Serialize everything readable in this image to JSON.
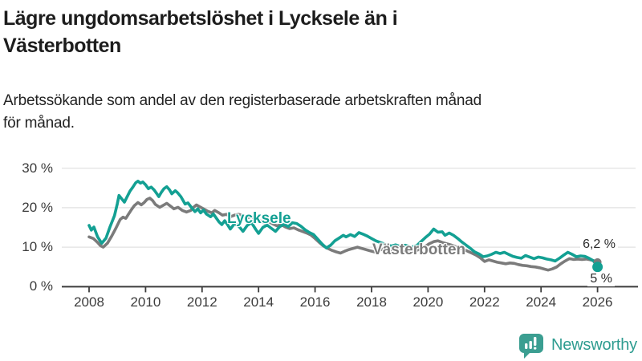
{
  "title_lines": [
    "Lägre ungdomsarbetslöshet i Lycksele än i",
    "Västerbotten"
  ],
  "subtitle_lines": [
    "Arbetssökande som andel av den registerbaserade arbetskraften månad",
    "för månad."
  ],
  "branding": {
    "name": "Newsworthy",
    "icon": "newsworthy-chart-bubble-icon",
    "color": "#2e9c90"
  },
  "colors": {
    "lycksele": "#13a093",
    "vasterbotten": "#7b7b7b",
    "axis": "#3c3c3c",
    "gridline": "#e2e2e2",
    "title_text": "#1d1d1d"
  },
  "chart_data": {
    "type": "line",
    "title": "Lägre ungdomsarbetslöshet i Lycksele än i Västerbotten",
    "subtitle": "Arbetssökande som andel av den registerbaserade arbetskraften månad för månad.",
    "xlabel": "",
    "ylabel": "",
    "grid": true,
    "legend_position": "inline-labels",
    "x_axis": {
      "tick_labels": [
        "2008",
        "2010",
        "2012",
        "2014",
        "2016",
        "2018",
        "2020",
        "2022",
        "2024",
        "2026"
      ],
      "ticks": [
        2008,
        2010,
        2012,
        2014,
        2016,
        2018,
        2020,
        2022,
        2024,
        2026
      ]
    },
    "y_axis": {
      "tick_labels": [
        "0 %",
        "10 %",
        "20 %",
        "30 %"
      ],
      "ticks": [
        0,
        10,
        20,
        30
      ],
      "range": [
        0,
        32
      ],
      "unit": "%"
    },
    "series": [
      {
        "name": "Västerbotten",
        "color": "#7b7b7b",
        "end_label": "6,2 %",
        "end_value": 6.2,
        "points": [
          [
            2008.0,
            12.6
          ],
          [
            2008.15,
            12.2
          ],
          [
            2008.3,
            11.2
          ],
          [
            2008.4,
            10.4
          ],
          [
            2008.5,
            10.0
          ],
          [
            2008.65,
            11.0
          ],
          [
            2008.8,
            12.8
          ],
          [
            2008.95,
            14.8
          ],
          [
            2009.1,
            17.0
          ],
          [
            2009.2,
            17.6
          ],
          [
            2009.3,
            17.3
          ],
          [
            2009.4,
            18.4
          ],
          [
            2009.5,
            19.5
          ],
          [
            2009.6,
            20.5
          ],
          [
            2009.73,
            21.3
          ],
          [
            2009.85,
            20.7
          ],
          [
            2009.95,
            21.3
          ],
          [
            2010.05,
            22.1
          ],
          [
            2010.15,
            22.4
          ],
          [
            2010.25,
            21.8
          ],
          [
            2010.35,
            20.8
          ],
          [
            2010.5,
            20.1
          ],
          [
            2010.65,
            20.7
          ],
          [
            2010.75,
            21.1
          ],
          [
            2010.9,
            20.3
          ],
          [
            2011.0,
            19.7
          ],
          [
            2011.15,
            20.1
          ],
          [
            2011.3,
            19.3
          ],
          [
            2011.45,
            18.9
          ],
          [
            2011.6,
            19.3
          ],
          [
            2011.7,
            20.1
          ],
          [
            2011.8,
            20.7
          ],
          [
            2011.9,
            20.3
          ],
          [
            2012.05,
            19.7
          ],
          [
            2012.2,
            19.1
          ],
          [
            2012.35,
            18.7
          ],
          [
            2012.45,
            19.3
          ],
          [
            2012.6,
            18.7
          ],
          [
            2012.72,
            18.1
          ],
          [
            2012.87,
            18.3
          ],
          [
            2013.0,
            17.7
          ],
          [
            2013.15,
            18.1
          ],
          [
            2013.3,
            18.3
          ],
          [
            2013.45,
            18.0
          ],
          [
            2013.6,
            17.4
          ],
          [
            2013.75,
            17.8
          ],
          [
            2013.9,
            17.2
          ],
          [
            2014.05,
            16.7
          ],
          [
            2014.2,
            16.2
          ],
          [
            2014.35,
            16.5
          ],
          [
            2014.5,
            15.9
          ],
          [
            2014.65,
            15.4
          ],
          [
            2014.8,
            15.7
          ],
          [
            2014.95,
            15.1
          ],
          [
            2015.1,
            14.7
          ],
          [
            2015.25,
            14.9
          ],
          [
            2015.4,
            14.4
          ],
          [
            2015.55,
            14.0
          ],
          [
            2015.7,
            13.6
          ],
          [
            2015.85,
            13.1
          ],
          [
            2016.0,
            12.2
          ],
          [
            2016.15,
            11.2
          ],
          [
            2016.3,
            10.3
          ],
          [
            2016.45,
            9.7
          ],
          [
            2016.6,
            9.2
          ],
          [
            2016.75,
            8.8
          ],
          [
            2016.9,
            8.5
          ],
          [
            2017.05,
            9.0
          ],
          [
            2017.2,
            9.4
          ],
          [
            2017.35,
            9.7
          ],
          [
            2017.5,
            10.0
          ],
          [
            2017.65,
            9.7
          ],
          [
            2017.8,
            9.4
          ],
          [
            2017.95,
            9.1
          ],
          [
            2018.1,
            8.8
          ],
          [
            2018.25,
            9.2
          ],
          [
            2018.4,
            9.5
          ],
          [
            2018.55,
            9.3
          ],
          [
            2018.7,
            9.0
          ],
          [
            2018.85,
            8.8
          ],
          [
            2019.0,
            9.1
          ],
          [
            2019.15,
            8.9
          ],
          [
            2019.3,
            8.7
          ],
          [
            2019.45,
            8.9
          ],
          [
            2019.6,
            9.2
          ],
          [
            2019.75,
            9.6
          ],
          [
            2019.9,
            10.2
          ],
          [
            2020.05,
            10.9
          ],
          [
            2020.2,
            11.4
          ],
          [
            2020.35,
            11.6
          ],
          [
            2020.5,
            11.2
          ],
          [
            2020.65,
            10.9
          ],
          [
            2020.8,
            10.6
          ],
          [
            2020.95,
            10.2
          ],
          [
            2021.1,
            9.9
          ],
          [
            2021.25,
            9.5
          ],
          [
            2021.4,
            9.0
          ],
          [
            2021.55,
            8.5
          ],
          [
            2021.7,
            8.0
          ],
          [
            2021.85,
            7.3
          ],
          [
            2022.0,
            6.4
          ],
          [
            2022.15,
            6.8
          ],
          [
            2022.3,
            6.5
          ],
          [
            2022.45,
            6.2
          ],
          [
            2022.6,
            6.0
          ],
          [
            2022.75,
            5.8
          ],
          [
            2022.9,
            6.0
          ],
          [
            2023.05,
            5.9
          ],
          [
            2023.2,
            5.6
          ],
          [
            2023.35,
            5.4
          ],
          [
            2023.5,
            5.3
          ],
          [
            2023.65,
            5.1
          ],
          [
            2023.8,
            5.0
          ],
          [
            2023.95,
            4.8
          ],
          [
            2024.1,
            4.5
          ],
          [
            2024.25,
            4.2
          ],
          [
            2024.4,
            4.5
          ],
          [
            2024.55,
            5.0
          ],
          [
            2024.7,
            5.8
          ],
          [
            2024.85,
            6.5
          ],
          [
            2025.0,
            7.1
          ],
          [
            2025.15,
            6.9
          ],
          [
            2025.3,
            7.0
          ],
          [
            2025.45,
            6.9
          ],
          [
            2025.6,
            7.0
          ],
          [
            2025.75,
            6.8
          ],
          [
            2025.9,
            6.5
          ],
          [
            2026.0,
            6.2
          ]
        ]
      },
      {
        "name": "Lycksele",
        "color": "#13a093",
        "end_label": "5 %",
        "end_value": 5.0,
        "points": [
          [
            2008.0,
            15.5
          ],
          [
            2008.08,
            14.3
          ],
          [
            2008.17,
            15.1
          ],
          [
            2008.3,
            12.6
          ],
          [
            2008.45,
            11.0
          ],
          [
            2008.6,
            12.3
          ],
          [
            2008.74,
            15.1
          ],
          [
            2008.9,
            18.0
          ],
          [
            2009.0,
            21.0
          ],
          [
            2009.06,
            23.1
          ],
          [
            2009.17,
            22.1
          ],
          [
            2009.25,
            21.4
          ],
          [
            2009.35,
            22.8
          ],
          [
            2009.45,
            24.2
          ],
          [
            2009.55,
            25.2
          ],
          [
            2009.65,
            26.3
          ],
          [
            2009.73,
            26.7
          ],
          [
            2009.82,
            26.2
          ],
          [
            2009.9,
            26.5
          ],
          [
            2010.0,
            25.8
          ],
          [
            2010.1,
            24.8
          ],
          [
            2010.2,
            25.2
          ],
          [
            2010.3,
            24.5
          ],
          [
            2010.4,
            23.5
          ],
          [
            2010.47,
            22.8
          ],
          [
            2010.55,
            23.8
          ],
          [
            2010.65,
            24.8
          ],
          [
            2010.75,
            25.3
          ],
          [
            2010.85,
            24.5
          ],
          [
            2010.93,
            23.5
          ],
          [
            2011.05,
            24.3
          ],
          [
            2011.13,
            23.8
          ],
          [
            2011.25,
            22.8
          ],
          [
            2011.4,
            20.9
          ],
          [
            2011.5,
            21.2
          ],
          [
            2011.63,
            20.0
          ],
          [
            2011.75,
            19.0
          ],
          [
            2011.85,
            19.7
          ],
          [
            2011.95,
            18.7
          ],
          [
            2012.05,
            19.4
          ],
          [
            2012.15,
            18.4
          ],
          [
            2012.3,
            17.7
          ],
          [
            2012.4,
            18.4
          ],
          [
            2012.5,
            17.4
          ],
          [
            2012.6,
            16.4
          ],
          [
            2012.7,
            15.7
          ],
          [
            2012.8,
            16.7
          ],
          [
            2012.9,
            15.7
          ],
          [
            2013.0,
            14.6
          ],
          [
            2013.15,
            16.0
          ],
          [
            2013.3,
            15.3
          ],
          [
            2013.45,
            14.0
          ],
          [
            2013.6,
            15.5
          ],
          [
            2013.75,
            16.2
          ],
          [
            2013.9,
            14.5
          ],
          [
            2014.0,
            13.5
          ],
          [
            2014.15,
            15.0
          ],
          [
            2014.3,
            15.6
          ],
          [
            2014.45,
            14.8
          ],
          [
            2014.6,
            14.0
          ],
          [
            2014.75,
            15.2
          ],
          [
            2014.9,
            15.8
          ],
          [
            2015.05,
            15.2
          ],
          [
            2015.2,
            16.2
          ],
          [
            2015.35,
            16.0
          ],
          [
            2015.5,
            15.3
          ],
          [
            2015.65,
            14.4
          ],
          [
            2015.8,
            13.7
          ],
          [
            2015.95,
            13.2
          ],
          [
            2016.1,
            12.0
          ],
          [
            2016.25,
            10.8
          ],
          [
            2016.4,
            9.8
          ],
          [
            2016.55,
            10.5
          ],
          [
            2016.7,
            11.6
          ],
          [
            2016.85,
            12.3
          ],
          [
            2017.0,
            13.0
          ],
          [
            2017.1,
            12.6
          ],
          [
            2017.25,
            13.2
          ],
          [
            2017.4,
            12.7
          ],
          [
            2017.55,
            13.7
          ],
          [
            2017.7,
            13.3
          ],
          [
            2017.85,
            12.8
          ],
          [
            2018.0,
            12.2
          ],
          [
            2018.15,
            11.6
          ],
          [
            2018.3,
            11.2
          ],
          [
            2018.5,
            10.7
          ],
          [
            2018.7,
            10.3
          ],
          [
            2018.85,
            10.6
          ],
          [
            2019.0,
            10.2
          ],
          [
            2019.2,
            10.5
          ],
          [
            2019.4,
            10.0
          ],
          [
            2019.6,
            10.4
          ],
          [
            2019.75,
            11.4
          ],
          [
            2019.9,
            12.4
          ],
          [
            2020.05,
            13.3
          ],
          [
            2020.2,
            14.6
          ],
          [
            2020.35,
            13.8
          ],
          [
            2020.5,
            13.9
          ],
          [
            2020.6,
            13.0
          ],
          [
            2020.75,
            13.6
          ],
          [
            2020.9,
            13.0
          ],
          [
            2021.05,
            12.2
          ],
          [
            2021.2,
            11.3
          ],
          [
            2021.35,
            10.5
          ],
          [
            2021.5,
            9.7
          ],
          [
            2021.65,
            8.8
          ],
          [
            2021.8,
            8.3
          ],
          [
            2021.95,
            7.6
          ],
          [
            2022.1,
            7.8
          ],
          [
            2022.25,
            8.2
          ],
          [
            2022.4,
            8.7
          ],
          [
            2022.55,
            8.4
          ],
          [
            2022.7,
            8.7
          ],
          [
            2022.85,
            8.2
          ],
          [
            2023.0,
            7.7
          ],
          [
            2023.15,
            7.4
          ],
          [
            2023.3,
            7.2
          ],
          [
            2023.45,
            7.9
          ],
          [
            2023.6,
            7.5
          ],
          [
            2023.75,
            7.1
          ],
          [
            2023.9,
            7.5
          ],
          [
            2024.05,
            7.3
          ],
          [
            2024.2,
            7.0
          ],
          [
            2024.35,
            6.8
          ],
          [
            2024.5,
            6.5
          ],
          [
            2024.65,
            7.2
          ],
          [
            2024.8,
            8.0
          ],
          [
            2024.95,
            8.7
          ],
          [
            2025.1,
            8.2
          ],
          [
            2025.25,
            7.6
          ],
          [
            2025.4,
            7.8
          ],
          [
            2025.55,
            7.7
          ],
          [
            2025.7,
            7.2
          ],
          [
            2025.85,
            6.6
          ],
          [
            2026.0,
            5.0
          ]
        ]
      }
    ]
  }
}
